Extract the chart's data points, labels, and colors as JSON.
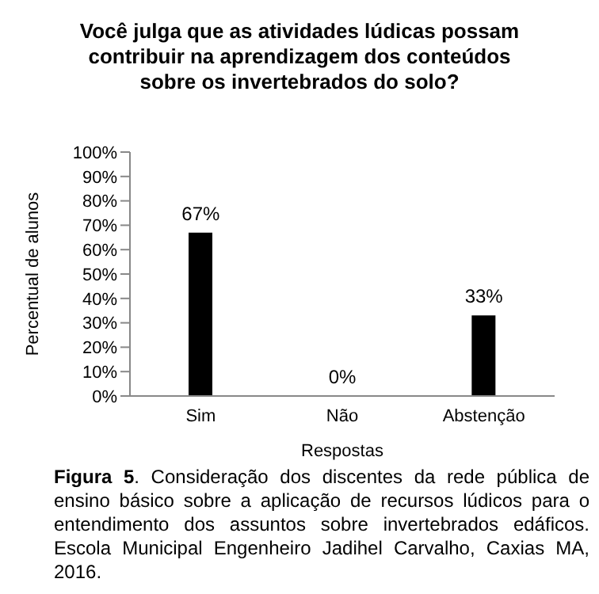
{
  "chart_data": {
    "type": "bar",
    "title": "Você julga que as atividades lúdicas possam contribuir na aprendizagem dos conteúdos sobre os invertebrados do solo?",
    "xlabel": "Respostas",
    "ylabel": "Percentual de alunos",
    "categories": [
      "Sim",
      "Não",
      "Abstenção"
    ],
    "values": [
      67,
      0,
      33
    ],
    "color": "#000000",
    "value_labels": [
      "67%",
      "0%",
      "33%"
    ],
    "ylim": [
      0,
      100
    ],
    "yticks": [
      {
        "value": 0,
        "label": "0%"
      },
      {
        "value": 10,
        "label": "10%"
      },
      {
        "value": 20,
        "label": "20%"
      },
      {
        "value": 30,
        "label": "30%"
      },
      {
        "value": 40,
        "label": "40%"
      },
      {
        "value": 50,
        "label": "50%"
      },
      {
        "value": 60,
        "label": "60%"
      },
      {
        "value": 70,
        "label": "70%"
      },
      {
        "value": 80,
        "label": "80%"
      },
      {
        "value": 90,
        "label": "90%"
      },
      {
        "value": 100,
        "label": "100%"
      }
    ],
    "grid": false,
    "legend": false,
    "annotations": [
      "Figura 5. Consideração dos discentes da rede pública de ensino básico sobre a aplicação de recursos lúdicos para o entendimento dos assuntos sobre invertebrados edáficos. Escola Municipal Engenheiro Jadihel Carvalho, Caxias MA, 2016."
    ]
  }
}
